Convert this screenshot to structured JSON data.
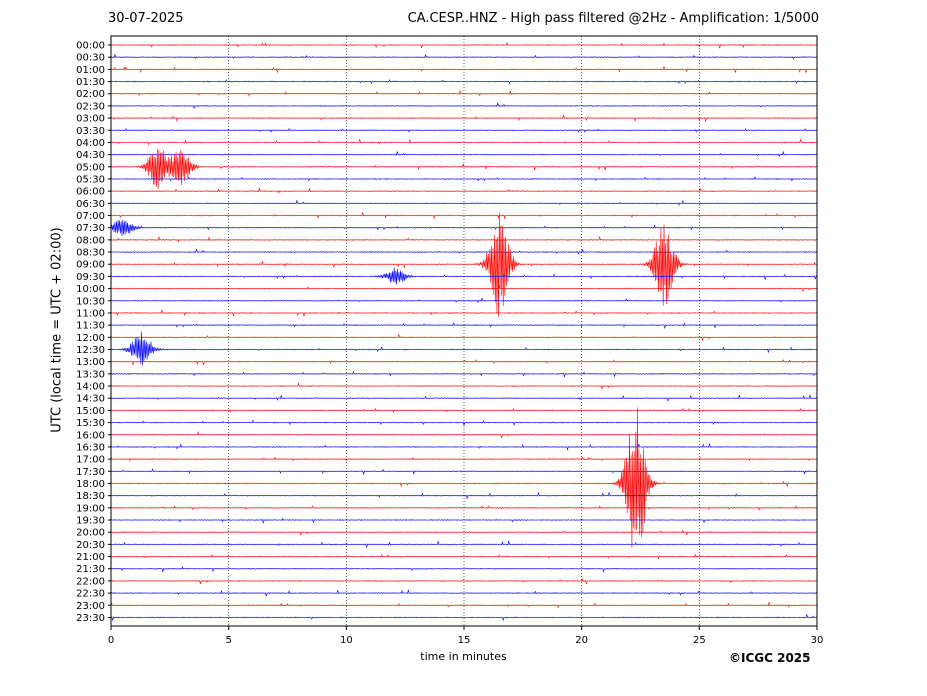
{
  "chart_data": {
    "type": "line",
    "date": "30-07-2025",
    "title": "CA.CESP..HNZ - High pass filtered @2Hz - Amplification: 1/5000",
    "xlabel": "time in minutes",
    "ylabel": "UTC (local time = UTC + 02:00)",
    "xlim": [
      0,
      30
    ],
    "x_ticks": [
      "0",
      "5",
      "10",
      "15",
      "20",
      "25",
      "30"
    ],
    "y_ticks": [
      "00:00",
      "00:30",
      "01:00",
      "01:30",
      "02:00",
      "02:30",
      "03:00",
      "03:30",
      "04:00",
      "04:30",
      "05:00",
      "05:30",
      "06:00",
      "06:30",
      "07:00",
      "07:30",
      "08:00",
      "08:30",
      "09:00",
      "09:30",
      "10:00",
      "10:30",
      "11:00",
      "11:30",
      "12:00",
      "12:30",
      "13:00",
      "13:30",
      "14:00",
      "14:30",
      "15:00",
      "15:30",
      "16:00",
      "16:30",
      "17:00",
      "17:30",
      "18:00",
      "18:30",
      "19:00",
      "19:30",
      "20:00",
      "20:30",
      "21:00",
      "21:30",
      "22:00",
      "22:30",
      "23:00",
      "23:30"
    ],
    "grid": "vertical dotted at x ticks",
    "trace_colors": [
      "#ff0000",
      "#0000ff"
    ],
    "events": [
      {
        "time": "05:00",
        "minute": 2.0,
        "amplitude": 1.8
      },
      {
        "time": "05:00",
        "minute": 3.0,
        "amplitude": 1.6
      },
      {
        "time": "07:30",
        "minute": 0.5,
        "amplitude": 0.8
      },
      {
        "time": "09:00",
        "minute": 16.5,
        "amplitude": 4.5
      },
      {
        "time": "09:00",
        "minute": 23.5,
        "amplitude": 3.7
      },
      {
        "time": "09:30",
        "minute": 12.1,
        "amplitude": 0.7
      },
      {
        "time": "12:30",
        "minute": 1.3,
        "amplitude": 1.5
      },
      {
        "time": "18:00",
        "minute": 22.3,
        "amplitude": 6.8
      }
    ]
  },
  "footer": {
    "copyright": "©ICGC 2025"
  }
}
